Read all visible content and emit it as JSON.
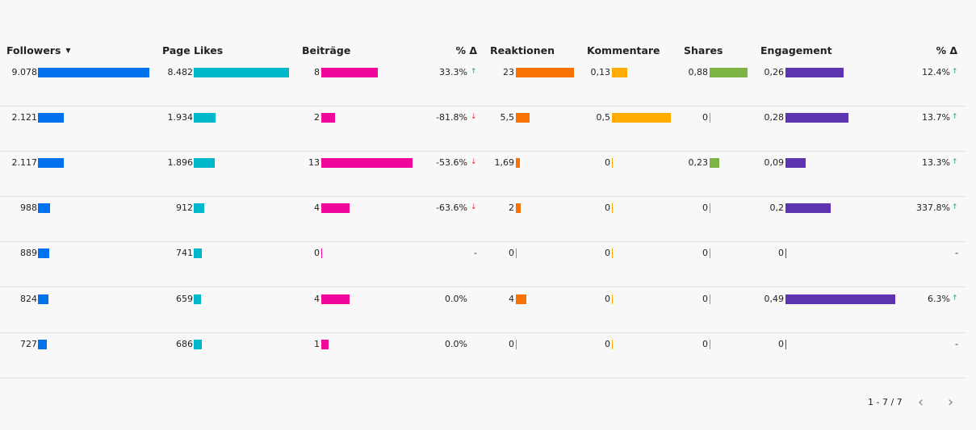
{
  "headers": {
    "followers": "Followers",
    "page_likes": "Page Likes",
    "beitraege": "Beiträge",
    "delta1": "% Δ",
    "reaktionen": "Reaktionen",
    "kommentare": "Kommentare",
    "shares": "Shares",
    "engagement": "Engagement",
    "delta2": "% Δ",
    "sort_icon": "▼"
  },
  "colors": {
    "followers": "#0073ec",
    "page_likes": "#00b8cc",
    "beitraege": "#f0069a",
    "reaktionen": "#f77200",
    "kommentare": "#ffab00",
    "shares": "#7cb342",
    "engagement": "#5e35b1",
    "up": "#2e9e4f",
    "down": "#e53935"
  },
  "rows": [
    {
      "followers": "9.078",
      "followers_v": 9078,
      "page_likes": "8.482",
      "page_likes_v": 8482,
      "beitraege": "8",
      "beitraege_v": 8,
      "delta1": "33.3%",
      "delta1_dir": "up",
      "reaktionen": "23",
      "reaktionen_v": 23,
      "kommentare": "0,13",
      "kommentare_v": 0.13,
      "shares": "0,88",
      "shares_v": 0.88,
      "engagement": "0,26",
      "engagement_v": 0.26,
      "delta2": "12.4%",
      "delta2_dir": "up"
    },
    {
      "followers": "2.121",
      "followers_v": 2121,
      "page_likes": "1.934",
      "page_likes_v": 1934,
      "beitraege": "2",
      "beitraege_v": 2,
      "delta1": "-81.8%",
      "delta1_dir": "down",
      "reaktionen": "5,5",
      "reaktionen_v": 5.5,
      "kommentare": "0,5",
      "kommentare_v": 0.5,
      "shares": "0",
      "shares_v": 0,
      "engagement": "0,28",
      "engagement_v": 0.28,
      "delta2": "13.7%",
      "delta2_dir": "up"
    },
    {
      "followers": "2.117",
      "followers_v": 2117,
      "page_likes": "1.896",
      "page_likes_v": 1896,
      "beitraege": "13",
      "beitraege_v": 13,
      "delta1": "-53.6%",
      "delta1_dir": "down",
      "reaktionen": "1,69",
      "reaktionen_v": 1.69,
      "kommentare": "0",
      "kommentare_v": 0,
      "shares": "0,23",
      "shares_v": 0.23,
      "engagement": "0,09",
      "engagement_v": 0.09,
      "delta2": "13.3%",
      "delta2_dir": "up"
    },
    {
      "followers": "988",
      "followers_v": 988,
      "page_likes": "912",
      "page_likes_v": 912,
      "beitraege": "4",
      "beitraege_v": 4,
      "delta1": "-63.6%",
      "delta1_dir": "down",
      "reaktionen": "2",
      "reaktionen_v": 2,
      "kommentare": "0",
      "kommentare_v": 0,
      "shares": "0",
      "shares_v": 0,
      "engagement": "0,2",
      "engagement_v": 0.2,
      "delta2": "337.8%",
      "delta2_dir": "up"
    },
    {
      "followers": "889",
      "followers_v": 889,
      "page_likes": "741",
      "page_likes_v": 741,
      "beitraege": "0",
      "beitraege_v": 0,
      "delta1": "-",
      "delta1_dir": "none",
      "reaktionen": "0",
      "reaktionen_v": 0,
      "kommentare": "0",
      "kommentare_v": 0,
      "shares": "0",
      "shares_v": 0,
      "engagement": "0",
      "engagement_v": 0,
      "delta2": "-",
      "delta2_dir": "none"
    },
    {
      "followers": "824",
      "followers_v": 824,
      "page_likes": "659",
      "page_likes_v": 659,
      "beitraege": "4",
      "beitraege_v": 4,
      "delta1": "0.0%",
      "delta1_dir": "none",
      "reaktionen": "4",
      "reaktionen_v": 4,
      "kommentare": "0",
      "kommentare_v": 0,
      "shares": "0",
      "shares_v": 0,
      "engagement": "0,49",
      "engagement_v": 0.49,
      "delta2": "6.3%",
      "delta2_dir": "up"
    },
    {
      "followers": "727",
      "followers_v": 727,
      "page_likes": "686",
      "page_likes_v": 686,
      "beitraege": "1",
      "beitraege_v": 1,
      "delta1": "0.0%",
      "delta1_dir": "none",
      "reaktionen": "0",
      "reaktionen_v": 0,
      "kommentare": "0",
      "kommentare_v": 0,
      "shares": "0",
      "shares_v": 0,
      "engagement": "0",
      "engagement_v": 0,
      "delta2": "-",
      "delta2_dir": "none"
    }
  ],
  "pagination": {
    "label": "1 - 7 / 7",
    "prev_icon": "‹",
    "next_icon": "›"
  }
}
